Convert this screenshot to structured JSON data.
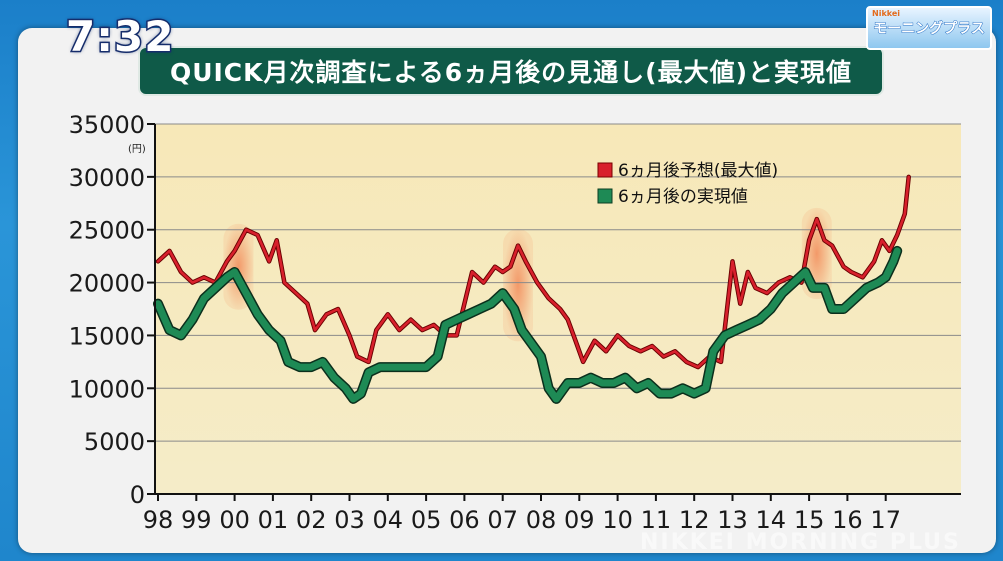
{
  "overlay": {
    "clock": "7:32",
    "badge_small": "Nikkei",
    "badge_main": "モーニングプラス",
    "watermark": "NIKKEI MORNING PLUS"
  },
  "chart_data": {
    "type": "line",
    "title": "QUICK月次調査による6ヵ月後の見通し(最大値)と実現値",
    "unit": "(円)",
    "xlabel": "",
    "ylabel": "",
    "ylim": [
      0,
      35000
    ],
    "yticks": [
      "0",
      "5000",
      "10000",
      "15000",
      "20000",
      "25000",
      "30000",
      "35000"
    ],
    "x_categories": [
      "98",
      "99",
      "00",
      "01",
      "02",
      "03",
      "04",
      "05",
      "06",
      "07",
      "08",
      "09",
      "10",
      "11",
      "12",
      "13",
      "14",
      "15",
      "16",
      "17"
    ],
    "x_range": [
      1998.0,
      2018.0
    ],
    "grid": true,
    "legend_position": "top-right",
    "series": [
      {
        "name": "6ヵ月後予想(最大値)",
        "color": "#d8202c",
        "points": [
          [
            1998.0,
            22000
          ],
          [
            1998.3,
            23000
          ],
          [
            1998.6,
            21000
          ],
          [
            1998.9,
            20000
          ],
          [
            1999.2,
            20500
          ],
          [
            1999.5,
            20000
          ],
          [
            1999.8,
            22000
          ],
          [
            2000.0,
            23000
          ],
          [
            2000.3,
            25000
          ],
          [
            2000.6,
            24500
          ],
          [
            2000.9,
            22000
          ],
          [
            2001.1,
            24000
          ],
          [
            2001.3,
            20000
          ],
          [
            2001.6,
            19000
          ],
          [
            2001.9,
            18000
          ],
          [
            2002.1,
            15500
          ],
          [
            2002.4,
            17000
          ],
          [
            2002.7,
            17500
          ],
          [
            2003.0,
            15000
          ],
          [
            2003.2,
            13000
          ],
          [
            2003.5,
            12500
          ],
          [
            2003.7,
            15500
          ],
          [
            2004.0,
            17000
          ],
          [
            2004.3,
            15500
          ],
          [
            2004.6,
            16500
          ],
          [
            2004.9,
            15500
          ],
          [
            2005.2,
            16000
          ],
          [
            2005.5,
            15000
          ],
          [
            2005.8,
            15000
          ],
          [
            2006.0,
            18000
          ],
          [
            2006.2,
            21000
          ],
          [
            2006.5,
            20000
          ],
          [
            2006.8,
            21500
          ],
          [
            2007.0,
            21000
          ],
          [
            2007.2,
            21500
          ],
          [
            2007.4,
            23500
          ],
          [
            2007.6,
            22000
          ],
          [
            2007.9,
            20000
          ],
          [
            2008.2,
            18500
          ],
          [
            2008.5,
            17500
          ],
          [
            2008.7,
            16500
          ],
          [
            2008.9,
            14500
          ],
          [
            2009.1,
            12500
          ],
          [
            2009.4,
            14500
          ],
          [
            2009.7,
            13500
          ],
          [
            2010.0,
            15000
          ],
          [
            2010.3,
            14000
          ],
          [
            2010.6,
            13500
          ],
          [
            2010.9,
            14000
          ],
          [
            2011.2,
            13000
          ],
          [
            2011.5,
            13500
          ],
          [
            2011.8,
            12500
          ],
          [
            2012.1,
            12000
          ],
          [
            2012.4,
            13000
          ],
          [
            2012.7,
            12500
          ],
          [
            2013.0,
            22000
          ],
          [
            2013.2,
            18000
          ],
          [
            2013.4,
            21000
          ],
          [
            2013.6,
            19500
          ],
          [
            2013.9,
            19000
          ],
          [
            2014.2,
            20000
          ],
          [
            2014.5,
            20500
          ],
          [
            2014.8,
            20000
          ],
          [
            2015.0,
            24000
          ],
          [
            2015.2,
            26000
          ],
          [
            2015.4,
            24000
          ],
          [
            2015.6,
            23500
          ],
          [
            2015.9,
            21500
          ],
          [
            2016.1,
            21000
          ],
          [
            2016.4,
            20500
          ],
          [
            2016.7,
            22000
          ],
          [
            2016.9,
            24000
          ],
          [
            2017.1,
            23000
          ],
          [
            2017.3,
            24500
          ],
          [
            2017.5,
            26500
          ],
          [
            2017.6,
            30000
          ]
        ]
      },
      {
        "name": "6ヵ月後の実現値",
        "color": "#1e8a55",
        "points": [
          [
            1998.0,
            18000
          ],
          [
            1998.3,
            15500
          ],
          [
            1998.6,
            15000
          ],
          [
            1998.9,
            16500
          ],
          [
            1999.2,
            18500
          ],
          [
            1999.5,
            19500
          ],
          [
            1999.8,
            20500
          ],
          [
            2000.0,
            21000
          ],
          [
            2000.3,
            19000
          ],
          [
            2000.6,
            17000
          ],
          [
            2000.9,
            15500
          ],
          [
            2001.2,
            14500
          ],
          [
            2001.4,
            12500
          ],
          [
            2001.7,
            12000
          ],
          [
            2002.0,
            12000
          ],
          [
            2002.3,
            12500
          ],
          [
            2002.6,
            11000
          ],
          [
            2002.9,
            10000
          ],
          [
            2003.1,
            9000
          ],
          [
            2003.3,
            9500
          ],
          [
            2003.5,
            11500
          ],
          [
            2003.8,
            12000
          ],
          [
            2004.1,
            12000
          ],
          [
            2004.4,
            12000
          ],
          [
            2004.7,
            12000
          ],
          [
            2005.0,
            12000
          ],
          [
            2005.3,
            13000
          ],
          [
            2005.5,
            16000
          ],
          [
            2005.8,
            16500
          ],
          [
            2006.1,
            17000
          ],
          [
            2006.4,
            17500
          ],
          [
            2006.7,
            18000
          ],
          [
            2007.0,
            19000
          ],
          [
            2007.3,
            17500
          ],
          [
            2007.5,
            15500
          ],
          [
            2007.7,
            14500
          ],
          [
            2008.0,
            13000
          ],
          [
            2008.2,
            10000
          ],
          [
            2008.4,
            9000
          ],
          [
            2008.7,
            10500
          ],
          [
            2009.0,
            10500
          ],
          [
            2009.3,
            11000
          ],
          [
            2009.6,
            10500
          ],
          [
            2009.9,
            10500
          ],
          [
            2010.2,
            11000
          ],
          [
            2010.5,
            10000
          ],
          [
            2010.8,
            10500
          ],
          [
            2011.1,
            9500
          ],
          [
            2011.4,
            9500
          ],
          [
            2011.7,
            10000
          ],
          [
            2012.0,
            9500
          ],
          [
            2012.3,
            10000
          ],
          [
            2012.5,
            13500
          ],
          [
            2012.8,
            15000
          ],
          [
            2013.1,
            15500
          ],
          [
            2013.4,
            16000
          ],
          [
            2013.7,
            16500
          ],
          [
            2014.0,
            17500
          ],
          [
            2014.3,
            19000
          ],
          [
            2014.6,
            20000
          ],
          [
            2014.9,
            21000
          ],
          [
            2015.1,
            19500
          ],
          [
            2015.4,
            19500
          ],
          [
            2015.6,
            17500
          ],
          [
            2015.9,
            17500
          ],
          [
            2016.2,
            18500
          ],
          [
            2016.5,
            19500
          ],
          [
            2016.8,
            20000
          ],
          [
            2017.0,
            20500
          ],
          [
            2017.2,
            22000
          ],
          [
            2017.3,
            23000
          ]
        ]
      }
    ],
    "highlights": [
      {
        "x": 2000.1,
        "y_from": 18000,
        "y_to": 25000
      },
      {
        "x": 2007.4,
        "y_from": 15000,
        "y_to": 24500
      },
      {
        "x": 2015.2,
        "y_from": 19000,
        "y_to": 26500
      }
    ]
  }
}
